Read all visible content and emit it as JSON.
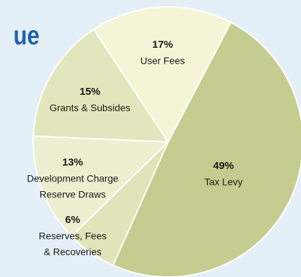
{
  "chart_data": {
    "type": "pie",
    "title": "ue",
    "categories": [
      "Tax Levy",
      "Reserves, Fees & Recoveries",
      "Development Charge Reserve Draws",
      "Grants & Subsides",
      "User Fees"
    ],
    "label_lines": [
      [
        "Tax Levy"
      ],
      [
        "Reserves, Fees",
        "& Recoveries"
      ],
      [
        "Development Charge",
        "Reserve Draws"
      ],
      [
        "Grants & Subsides"
      ],
      [
        "User Fees"
      ]
    ],
    "values": [
      49,
      6,
      13,
      15,
      17
    ],
    "value_labels": [
      "49%",
      "6%",
      "13%",
      "15%",
      "17%"
    ],
    "colors": [
      "#c5cc8f",
      "#dfe4b9",
      "#edf0d0",
      "#e2e6bc",
      "#f5f4d6"
    ]
  }
}
